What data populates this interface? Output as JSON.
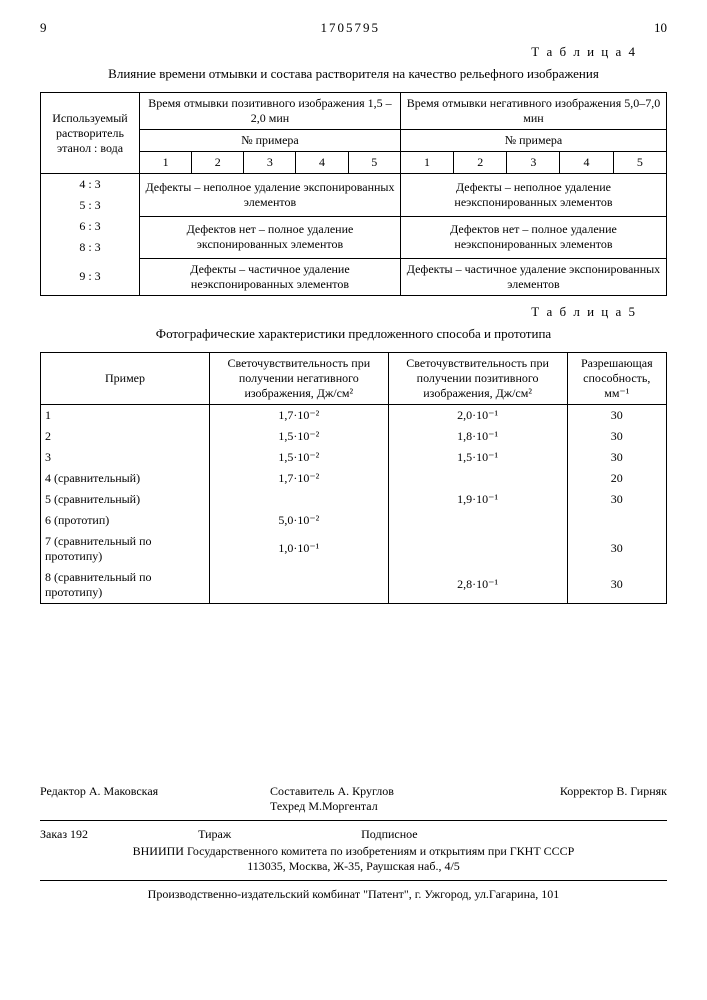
{
  "header": {
    "page_left": "9",
    "doc_number": "1705795",
    "page_right": "10"
  },
  "table4": {
    "label": "Т а б л и ц а 4",
    "title": "Влияние времени отмывки и состава растворителя на качество рельефного изображения",
    "col_solvent": "Используемый растворитель этанол : вода",
    "col_pos_time": "Время отмывки позитивного изображения 1,5 – 2,0 мин",
    "col_neg_time": "Время отмывки негативного изображения 5,0–7,0 мин",
    "col_example": "№ примера",
    "nums": [
      "1",
      "2",
      "3",
      "4",
      "5"
    ],
    "solvent_ratios": [
      "4 : 3",
      "5 : 3",
      "6 : 3",
      "8 : 3",
      "9 : 3"
    ],
    "cell_pos_defects_incomplete": "Дефекты – неполное удаление экспонированных элементов",
    "cell_neg_defects_incomplete": "Дефекты – неполное удаление неэкспонированных элементов",
    "cell_pos_no_defects": "Дефектов нет – полное удаление экспонированных элементов",
    "cell_neg_no_defects": "Дефектов нет – полное удаление неэкспонированных элементов",
    "cell_pos_partial": "Дефекты – частичное удаление неэкспонированных элементов",
    "cell_neg_partial": "Дефекты – частичное удаление экспонированных элементов"
  },
  "table5": {
    "label": "Т а б л и ц а 5",
    "title": "Фотографические характеристики предложенного способа и прототипа",
    "col_example": "Пример",
    "col_sens_neg": "Светочувствительность при получении негативного изображения, Дж/см²",
    "col_sens_pos": "Светочувствительность при получении позитивного изображения, Дж/см²",
    "col_resolution": "Разрешающая способность, мм⁻¹",
    "rows": [
      {
        "example": "1",
        "neg": "1,7·10⁻²",
        "pos": "2,0·10⁻¹",
        "res": "30"
      },
      {
        "example": "2",
        "neg": "1,5·10⁻²",
        "pos": "1,8·10⁻¹",
        "res": "30"
      },
      {
        "example": "3",
        "neg": "1,5·10⁻²",
        "pos": "1,5·10⁻¹",
        "res": "30"
      },
      {
        "example": "4 (сравнительный)",
        "neg": "1,7·10⁻²",
        "pos": "",
        "res": "20"
      },
      {
        "example": "5 (сравнительный)",
        "neg": "",
        "pos": "1,9·10⁻¹",
        "res": "30"
      },
      {
        "example": "6 (прототип)",
        "neg": "5,0·10⁻²",
        "pos": "",
        "res": ""
      },
      {
        "example": "7 (сравнительный по прототипу)",
        "neg": "1,0·10⁻¹",
        "pos": "",
        "res": "30"
      },
      {
        "example": "8 (сравнительный по прототипу)",
        "neg": "",
        "pos": "2,8·10⁻¹",
        "res": "30"
      }
    ]
  },
  "credits": {
    "editor": "Редактор А. Маковская",
    "compiler": "Составитель А. Круглов",
    "techred": "Техред М.Моргентал",
    "corrector": "Корректор В. Гирняк",
    "order": "Заказ 192",
    "tirazh": "Тираж",
    "subscr": "Подписное",
    "org": "ВНИИПИ Государственного комитета по изобретениям и открытиям при ГКНТ СССР",
    "addr": "113035, Москва, Ж-35, Раушская наб., 4/5",
    "printer": "Производственно-издательский комбинат \"Патент\", г. Ужгород, ул.Гагарина, 101"
  }
}
